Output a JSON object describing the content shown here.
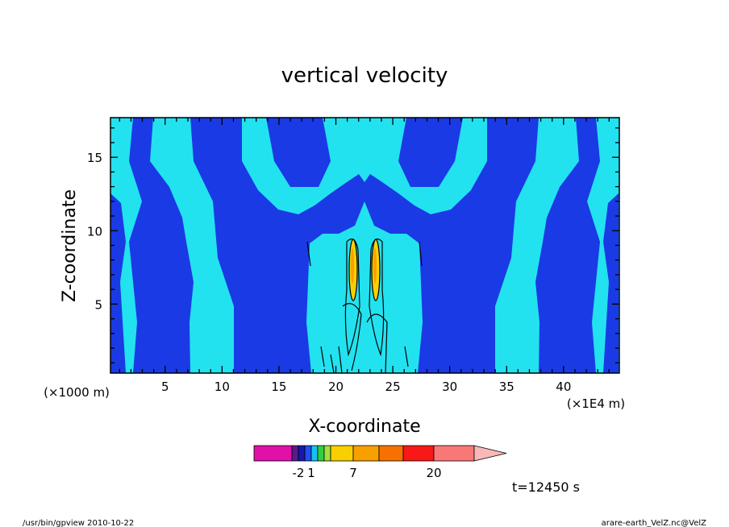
{
  "chart_data": {
    "type": "contour",
    "title": "vertical velocity",
    "x_label": "X-coordinate",
    "y_label": "Z-coordinate",
    "x_unit": "(×1E4 m)",
    "y_unit": "(×1000 m)",
    "xlim": [
      0.2,
      44.9
    ],
    "ylim": [
      0.3,
      17.7
    ],
    "xticks": [
      5,
      10,
      15,
      20,
      25,
      30,
      35,
      40
    ],
    "yticks": [
      5,
      10,
      15
    ],
    "xminorticks": [
      1,
      2,
      3,
      4,
      6,
      7,
      8,
      9,
      11,
      12,
      13,
      14,
      16,
      17,
      18,
      19,
      21,
      22,
      23,
      24,
      26,
      27,
      28,
      29,
      31,
      32,
      33,
      34,
      36,
      37,
      38,
      39,
      41,
      42,
      43,
      44
    ],
    "yminorticks": [
      1,
      2,
      3,
      4,
      6,
      7,
      8,
      9,
      11,
      12,
      13,
      14,
      16,
      17
    ],
    "colorbar": {
      "colors": [
        "#e010a8",
        "#5b1a8c",
        "#1818b0",
        "#1e50f0",
        "#18c0f0",
        "#30d040",
        "#a0e040",
        "#f8d000",
        "#f8a000",
        "#f87000",
        "#f81818",
        "#f87878",
        "#f8b8b8"
      ],
      "ticks": [
        -2,
        1,
        7,
        20
      ]
    },
    "time_label": "t=12450 s",
    "footer_left": "/usr/bin/gpview  2010-10-22",
    "footer_right": "arare-earth_VelZ.nc@VelZ"
  }
}
